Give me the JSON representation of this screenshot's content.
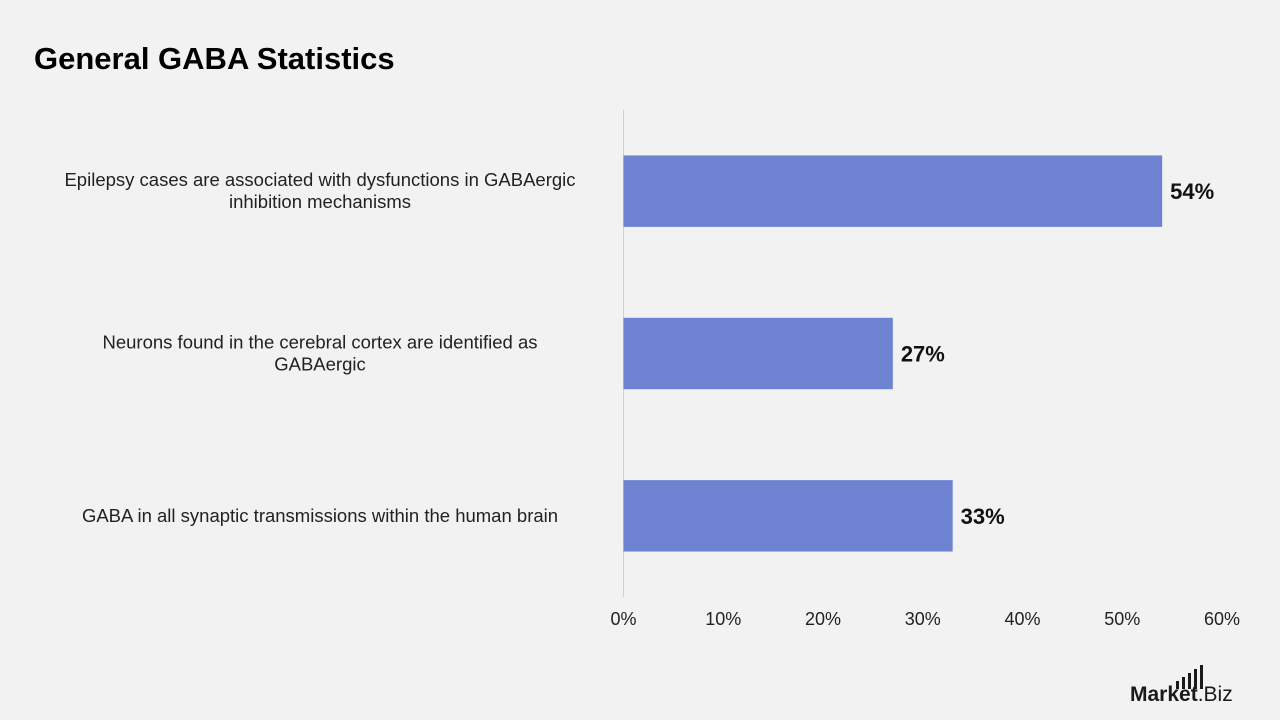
{
  "chart_data": {
    "type": "bar",
    "orientation": "horizontal",
    "title": "General GABA Statistics",
    "categories": [
      "Epilepsy cases are associated with dysfunctions in GABAergic inhibition mechanisms",
      "Neurons found in the cerebral cortex are identified as GABAergic",
      "GABA in all synaptic transmissions within the human brain"
    ],
    "category_lines": [
      [
        "Epilepsy cases are associated with dysfunctions in GABAergic",
        "inhibition mechanisms"
      ],
      [
        "Neurons found in the cerebral cortex are identified as",
        "GABAergic"
      ],
      [
        "GABA in all synaptic transmissions within the human brain"
      ]
    ],
    "values": [
      54,
      27,
      33
    ],
    "data_labels": [
      "54%",
      "27%",
      "33%"
    ],
    "xlim": [
      0,
      60
    ],
    "ticks": [
      0,
      10,
      20,
      30,
      40,
      50,
      60
    ],
    "tick_labels": [
      "0%",
      "10%",
      "20%",
      "30%",
      "40%",
      "50%",
      "60%"
    ],
    "xlabel": "",
    "ylabel": "",
    "grid": false,
    "legend": "none",
    "bar_color": "#6e82d2",
    "axis_color": "#d0d0d0",
    "background": "#f2f2f2"
  },
  "brand": {
    "name": "Market",
    "suffix": ".Biz",
    "icon": "bar-chart-icon"
  }
}
